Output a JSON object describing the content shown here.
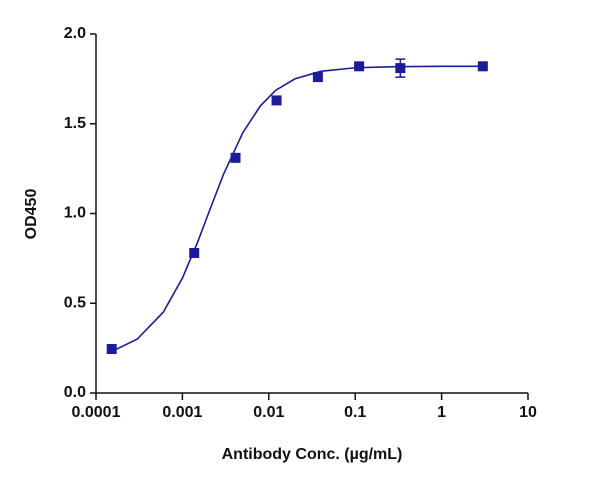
{
  "chart_data": {
    "type": "scatter",
    "xlabel": "Antibody Conc. (µg/mL)",
    "ylabel": "OD450",
    "xscale": "log",
    "xlim": [
      0.0001,
      10
    ],
    "ylim": [
      0,
      2
    ],
    "xticks": [
      0.0001,
      0.001,
      0.01,
      0.1,
      1,
      10
    ],
    "yticks": [
      {
        "value": 0,
        "label": "0.0"
      },
      {
        "value": 0.5,
        "label": "0.5"
      },
      {
        "value": 1,
        "label": "1.0"
      },
      {
        "value": 1.5,
        "label": "1.5"
      },
      {
        "value": 2,
        "label": "2.0"
      }
    ],
    "series": [
      {
        "color": "#1c1c9a",
        "marker": "square",
        "x": [
          0.000152,
          0.00137,
          0.00412,
          0.0123,
          0.037,
          0.111,
          0.333,
          3
        ],
        "values": [
          0.245,
          0.78,
          1.31,
          1.63,
          1.76,
          1.82,
          1.81,
          1.82
        ],
        "errors": [
          null,
          null,
          null,
          null,
          null,
          null,
          0.05,
          null
        ]
      }
    ],
    "curve": {
      "color": "#1c1c9a",
      "x": [
        0.00015,
        0.0003,
        0.0006,
        0.001,
        0.0015,
        0.002,
        0.003,
        0.005,
        0.008,
        0.012,
        0.02,
        0.04,
        0.1,
        0.3,
        1,
        3
      ],
      "values": [
        0.23,
        0.3,
        0.45,
        0.64,
        0.84,
        1.0,
        1.22,
        1.45,
        1.6,
        1.686,
        1.75,
        1.792,
        1.812,
        1.818,
        1.82,
        1.82
      ]
    }
  }
}
